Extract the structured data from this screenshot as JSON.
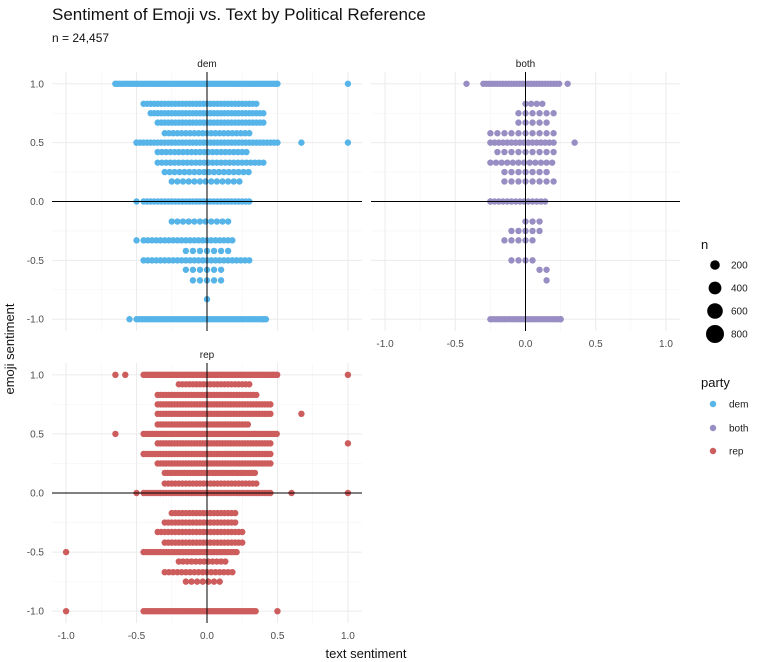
{
  "chart_data": {
    "type": "scatter",
    "title": "Sentiment of Emoji vs. Text by Political Reference",
    "subtitle": "n = 24,457",
    "xlabel": "text sentiment",
    "ylabel": "emoji sentiment",
    "xlim": [
      -1.0,
      1.0
    ],
    "ylim": [
      -1.0,
      1.0
    ],
    "x_ticks": [
      -1.0,
      -0.5,
      0.0,
      0.5,
      1.0
    ],
    "y_ticks": [
      -1.0,
      -0.5,
      0.0,
      0.5,
      1.0
    ],
    "x_tick_labels": [
      "-1.0",
      "-0.5",
      "0.0",
      "0.5",
      "1.0"
    ],
    "y_tick_labels": [
      "-1.0",
      "-0.5",
      "0.0",
      "0.5",
      "1.0"
    ],
    "grid": true,
    "reference_lines": {
      "x": 0,
      "y": 0
    },
    "legend_placement": "right",
    "size_legend": {
      "title": "n",
      "entries": [
        {
          "label": "200",
          "value": 200
        },
        {
          "label": "400",
          "value": 400
        },
        {
          "label": "600",
          "value": 600
        },
        {
          "label": "800",
          "value": 800
        }
      ]
    },
    "color_legend": {
      "title": "party",
      "entries": [
        {
          "label": "dem",
          "color": "#56B4E9"
        },
        {
          "label": "both",
          "color": "#998EC3"
        },
        {
          "label": "rep",
          "color": "#CD5C5C"
        }
      ]
    },
    "panels": [
      {
        "name": "dem",
        "color": "#56B4E9",
        "rows": [
          {
            "y": 1.0,
            "x_from": -0.65,
            "x_to": 0.5,
            "step": 0.015
          },
          {
            "y": 0.83,
            "x_from": -0.45,
            "x_to": 0.35,
            "step": 0.025
          },
          {
            "y": 0.75,
            "x_from": -0.4,
            "x_to": 0.4,
            "step": 0.025
          },
          {
            "y": 0.67,
            "x_from": -0.35,
            "x_to": 0.4,
            "step": 0.025
          },
          {
            "y": 0.58,
            "x_from": -0.3,
            "x_to": 0.3,
            "step": 0.03
          },
          {
            "y": 0.5,
            "x_from": -0.5,
            "x_to": 0.5,
            "step": 0.025
          },
          {
            "y": 0.42,
            "x_from": -0.35,
            "x_to": 0.3,
            "step": 0.03
          },
          {
            "y": 0.33,
            "x_from": -0.35,
            "x_to": 0.4,
            "step": 0.03
          },
          {
            "y": 0.25,
            "x_from": -0.3,
            "x_to": 0.3,
            "step": 0.035
          },
          {
            "y": 0.17,
            "x_from": -0.25,
            "x_to": 0.25,
            "step": 0.04
          },
          {
            "y": 0.0,
            "x_from": -0.45,
            "x_to": 0.3,
            "step": 0.025
          },
          {
            "y": -0.17,
            "x_from": -0.25,
            "x_to": 0.15,
            "step": 0.04
          },
          {
            "y": -0.33,
            "x_from": -0.45,
            "x_to": 0.2,
            "step": 0.03
          },
          {
            "y": -0.42,
            "x_from": -0.15,
            "x_to": 0.15,
            "step": 0.05
          },
          {
            "y": -0.5,
            "x_from": -0.45,
            "x_to": 0.3,
            "step": 0.03
          },
          {
            "y": -0.58,
            "x_from": -0.15,
            "x_to": 0.1,
            "step": 0.05
          },
          {
            "y": -0.67,
            "x_from": -0.1,
            "x_to": 0.1,
            "step": 0.05
          },
          {
            "y": -1.0,
            "x_from": -0.5,
            "x_to": 0.42,
            "step": 0.018
          }
        ],
        "points": [
          {
            "x": -0.65,
            "y": 1.0
          },
          {
            "x": 1.0,
            "y": 1.0
          },
          {
            "x": 0.5,
            "y": 1.0
          },
          {
            "x": 0.67,
            "y": 0.5
          },
          {
            "x": 1.0,
            "y": 0.5
          },
          {
            "x": -0.5,
            "y": 0.5
          },
          {
            "x": -0.5,
            "y": 0.0
          },
          {
            "x": -0.5,
            "y": -0.33
          },
          {
            "x": 0.0,
            "y": -0.83
          },
          {
            "x": -0.55,
            "y": -1.0
          },
          {
            "x": 0.4,
            "y": -1.0
          }
        ]
      },
      {
        "name": "both",
        "color": "#998EC3",
        "rows": [
          {
            "y": 1.0,
            "x_from": -0.3,
            "x_to": 0.25,
            "step": 0.02
          },
          {
            "y": 0.83,
            "x_from": 0.0,
            "x_to": 0.15,
            "step": 0.04
          },
          {
            "y": 0.75,
            "x_from": -0.05,
            "x_to": 0.2,
            "step": 0.05
          },
          {
            "y": 0.67,
            "x_from": -0.05,
            "x_to": 0.15,
            "step": 0.05
          },
          {
            "y": 0.58,
            "x_from": -0.25,
            "x_to": 0.2,
            "step": 0.05
          },
          {
            "y": 0.5,
            "x_from": -0.25,
            "x_to": 0.2,
            "step": 0.03
          },
          {
            "y": 0.42,
            "x_from": -0.2,
            "x_to": 0.2,
            "step": 0.05
          },
          {
            "y": 0.33,
            "x_from": -0.25,
            "x_to": 0.2,
            "step": 0.04
          },
          {
            "y": 0.25,
            "x_from": -0.15,
            "x_to": 0.15,
            "step": 0.05
          },
          {
            "y": 0.17,
            "x_from": -0.15,
            "x_to": 0.2,
            "step": 0.05
          },
          {
            "y": 0.0,
            "x_from": -0.25,
            "x_to": 0.15,
            "step": 0.03
          },
          {
            "y": -0.17,
            "x_from": 0.0,
            "x_to": 0.1,
            "step": 0.05
          },
          {
            "y": -0.25,
            "x_from": -0.1,
            "x_to": 0.1,
            "step": 0.05
          },
          {
            "y": -0.33,
            "x_from": -0.15,
            "x_to": 0.05,
            "step": 0.05
          },
          {
            "y": -0.5,
            "x_from": -0.1,
            "x_to": 0.05,
            "step": 0.05
          },
          {
            "y": -0.58,
            "x_from": 0.1,
            "x_to": 0.15,
            "step": 0.05
          },
          {
            "y": -1.0,
            "x_from": -0.25,
            "x_to": 0.25,
            "step": 0.02
          }
        ],
        "points": [
          {
            "x": -0.42,
            "y": 1.0
          },
          {
            "x": 0.3,
            "y": 1.0
          },
          {
            "x": 0.35,
            "y": 0.5
          },
          {
            "x": -0.25,
            "y": 0.0
          },
          {
            "x": 0.15,
            "y": -0.67
          },
          {
            "x": 0.25,
            "y": -1.0
          }
        ]
      },
      {
        "name": "rep",
        "color": "#CD5C5C",
        "rows": [
          {
            "y": 1.0,
            "x_from": -0.45,
            "x_to": 0.5,
            "step": 0.012
          },
          {
            "y": 0.92,
            "x_from": -0.2,
            "x_to": 0.3,
            "step": 0.025
          },
          {
            "y": 0.83,
            "x_from": -0.35,
            "x_to": 0.35,
            "step": 0.02
          },
          {
            "y": 0.75,
            "x_from": -0.35,
            "x_to": 0.45,
            "step": 0.02
          },
          {
            "y": 0.67,
            "x_from": -0.35,
            "x_to": 0.45,
            "step": 0.02
          },
          {
            "y": 0.58,
            "x_from": -0.35,
            "x_to": 0.3,
            "step": 0.02
          },
          {
            "y": 0.5,
            "x_from": -0.45,
            "x_to": 0.5,
            "step": 0.015
          },
          {
            "y": 0.42,
            "x_from": -0.35,
            "x_to": 0.45,
            "step": 0.02
          },
          {
            "y": 0.33,
            "x_from": -0.45,
            "x_to": 0.45,
            "step": 0.02
          },
          {
            "y": 0.25,
            "x_from": -0.35,
            "x_to": 0.45,
            "step": 0.02
          },
          {
            "y": 0.17,
            "x_from": -0.3,
            "x_to": 0.35,
            "step": 0.02
          },
          {
            "y": 0.08,
            "x_from": -0.3,
            "x_to": 0.35,
            "step": 0.025
          },
          {
            "y": 0.0,
            "x_from": -0.45,
            "x_to": 0.45,
            "step": 0.02
          },
          {
            "y": -0.17,
            "x_from": -0.25,
            "x_to": 0.2,
            "step": 0.025
          },
          {
            "y": -0.25,
            "x_from": -0.3,
            "x_to": 0.2,
            "step": 0.025
          },
          {
            "y": -0.33,
            "x_from": -0.35,
            "x_to": 0.25,
            "step": 0.025
          },
          {
            "y": -0.42,
            "x_from": -0.3,
            "x_to": 0.25,
            "step": 0.025
          },
          {
            "y": -0.5,
            "x_from": -0.45,
            "x_to": 0.22,
            "step": 0.02
          },
          {
            "y": -0.58,
            "x_from": -0.2,
            "x_to": 0.15,
            "step": 0.03
          },
          {
            "y": -0.67,
            "x_from": -0.3,
            "x_to": 0.2,
            "step": 0.03
          },
          {
            "y": -0.75,
            "x_from": -0.15,
            "x_to": 0.1,
            "step": 0.04
          },
          {
            "y": -1.0,
            "x_from": -0.45,
            "x_to": 0.35,
            "step": 0.015
          }
        ],
        "points": [
          {
            "x": -0.65,
            "y": 1.0
          },
          {
            "x": -0.58,
            "y": 1.0
          },
          {
            "x": 1.0,
            "y": 1.0
          },
          {
            "x": 0.67,
            "y": 0.67
          },
          {
            "x": -0.65,
            "y": 0.5
          },
          {
            "x": 1.0,
            "y": 0.42
          },
          {
            "x": 0.6,
            "y": 0.0
          },
          {
            "x": 1.0,
            "y": 0.0
          },
          {
            "x": -0.5,
            "y": 0.0
          },
          {
            "x": -1.0,
            "y": -0.5
          },
          {
            "x": -1.0,
            "y": -1.0
          },
          {
            "x": 0.5,
            "y": -1.0
          }
        ]
      }
    ]
  }
}
